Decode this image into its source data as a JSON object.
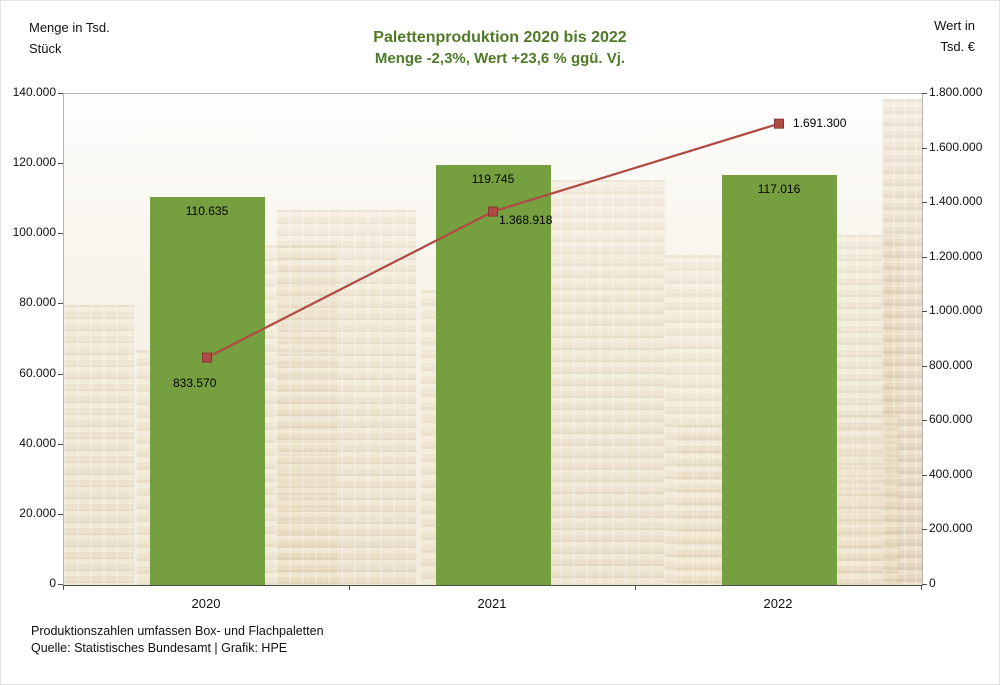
{
  "title": "Palettenproduktion 2020 bis 2022",
  "subtitle": "Menge -2,3%, Wert +23,6 % ggü. Vj.",
  "left_axis_title": {
    "line1": "Menge in Tsd.",
    "line2": "Stück"
  },
  "right_axis_title": {
    "line1": "Wert in",
    "line2": "Tsd. €"
  },
  "footer": {
    "line1": "Produktionszahlen umfassen Box- und Flachpaletten",
    "line2": "Quelle: Statistisches Bundesamt | Grafik: HPE"
  },
  "colors": {
    "title_green": "#4f7a28",
    "bar": "#76a03f",
    "line": "#b04a45",
    "line_marker_border": "#873733"
  },
  "chart_data": {
    "type": "bar",
    "combo": "bar+line",
    "categories": [
      "2020",
      "2021",
      "2022"
    ],
    "series": [
      {
        "name": "Menge",
        "type": "bar",
        "axis": "left",
        "values": [
          110635,
          119745,
          117016
        ],
        "labels": [
          "110.635",
          "119.745",
          "117.016"
        ]
      },
      {
        "name": "Wert",
        "type": "line",
        "axis": "right",
        "values": [
          833570,
          1368918,
          1691300
        ],
        "labels": [
          "833.570",
          "1.368.918",
          "1.691.300"
        ]
      }
    ],
    "left_axis": {
      "min": 0,
      "max": 140000,
      "step": 20000,
      "tick_labels": [
        "0",
        "20.000",
        "40.000",
        "60.000",
        "80.000",
        "100.000",
        "120.000",
        "140.000"
      ]
    },
    "right_axis": {
      "min": 0,
      "max": 1800000,
      "step": 200000,
      "tick_labels": [
        "0",
        "200.000",
        "400.000",
        "600.000",
        "800.000",
        "1.000.000",
        "1.200.000",
        "1.400.000",
        "1.600.000",
        "1.800.000"
      ]
    },
    "grid": false,
    "legend": "none",
    "background": "faded photo of stacked wooden pallets"
  }
}
